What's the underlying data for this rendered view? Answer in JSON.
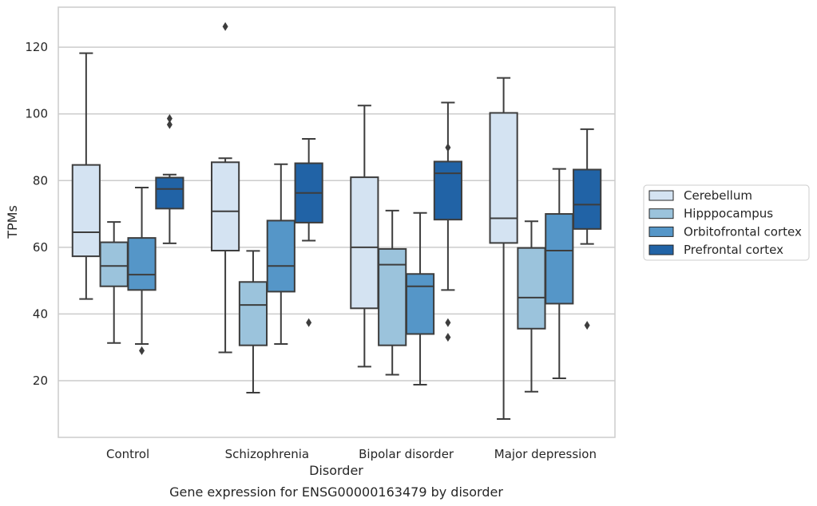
{
  "caption": "Gene expression for ENSG00000163479 by disorder",
  "chart_data": {
    "type": "box",
    "xlabel": "Disorder",
    "ylabel": "TPMs",
    "ylim": [
      3,
      132
    ],
    "yticks": [
      20,
      40,
      60,
      80,
      100,
      120
    ],
    "grid": "horizontal",
    "legend_placement": "right",
    "categories": [
      "Control",
      "Schizophrenia",
      "Bipolar disorder",
      "Major depression"
    ],
    "series": [
      {
        "name": "Cerebellum",
        "color": "#d4e3f2",
        "boxes": [
          {
            "whislo": 44.5,
            "q1": 57.3,
            "med": 64.5,
            "q3": 84.7,
            "whishi": 118.2,
            "fliers": []
          },
          {
            "whislo": 28.5,
            "q1": 59.0,
            "med": 70.8,
            "q3": 85.5,
            "whishi": 86.7,
            "fliers": [
              126.2
            ]
          },
          {
            "whislo": 24.2,
            "q1": 41.7,
            "med": 60.0,
            "q3": 81.0,
            "whishi": 102.5,
            "fliers": []
          },
          {
            "whislo": 8.5,
            "q1": 61.3,
            "med": 68.7,
            "q3": 100.3,
            "whishi": 110.8,
            "fliers": []
          }
        ]
      },
      {
        "name": "Hipppocampus",
        "color": "#9bc3dc",
        "boxes": [
          {
            "whislo": 31.3,
            "q1": 48.3,
            "med": 54.4,
            "q3": 61.5,
            "whishi": 67.6,
            "fliers": []
          },
          {
            "whislo": 16.4,
            "q1": 30.6,
            "med": 42.7,
            "q3": 49.6,
            "whishi": 58.9,
            "fliers": []
          },
          {
            "whislo": 21.8,
            "q1": 30.6,
            "med": 54.8,
            "q3": 59.5,
            "whishi": 71.0,
            "fliers": []
          },
          {
            "whislo": 16.7,
            "q1": 35.6,
            "med": 44.9,
            "q3": 59.8,
            "whishi": 67.8,
            "fliers": []
          }
        ]
      },
      {
        "name": "Orbitofrontal cortex",
        "color": "#5596c8",
        "boxes": [
          {
            "whislo": 31.0,
            "q1": 47.2,
            "med": 51.8,
            "q3": 62.8,
            "whishi": 77.9,
            "fliers": [
              29.0
            ]
          },
          {
            "whislo": 31.0,
            "q1": 46.7,
            "med": 54.4,
            "q3": 68.0,
            "whishi": 84.9,
            "fliers": []
          },
          {
            "whislo": 18.8,
            "q1": 34.0,
            "med": 48.3,
            "q3": 52.0,
            "whishi": 70.3,
            "fliers": []
          },
          {
            "whislo": 20.7,
            "q1": 43.1,
            "med": 59.0,
            "q3": 70.0,
            "whishi": 83.5,
            "fliers": []
          }
        ]
      },
      {
        "name": "Prefrontal cortex",
        "color": "#2163a6",
        "boxes": [
          {
            "whislo": 61.2,
            "q1": 71.6,
            "med": 77.5,
            "q3": 80.9,
            "whishi": 81.8,
            "fliers": [
              96.8,
              98.6
            ]
          },
          {
            "whislo": 62.0,
            "q1": 67.4,
            "med": 76.3,
            "q3": 85.2,
            "whishi": 92.5,
            "fliers": [
              37.4
            ]
          },
          {
            "whislo": 47.2,
            "q1": 68.3,
            "med": 82.2,
            "q3": 85.7,
            "whishi": 103.4,
            "fliers": [
              37.4,
              33.0,
              89.9
            ]
          },
          {
            "whislo": 61.0,
            "q1": 65.5,
            "med": 72.8,
            "q3": 83.3,
            "whishi": 95.4,
            "fliers": [
              36.6
            ]
          }
        ]
      }
    ]
  }
}
